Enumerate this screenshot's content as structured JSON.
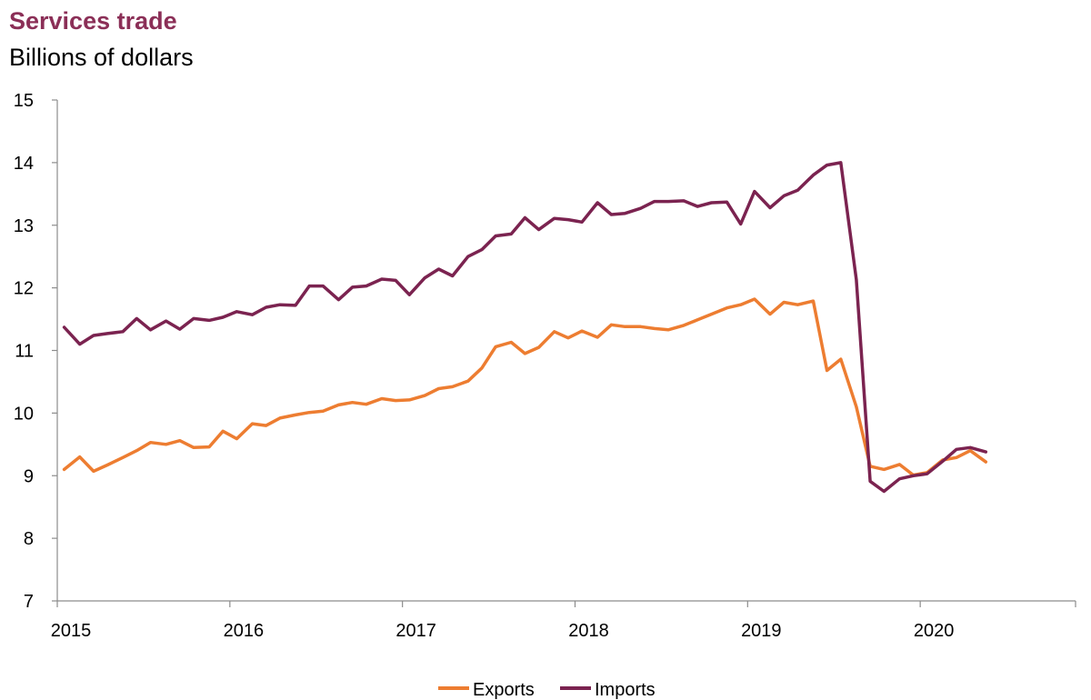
{
  "chart_data": {
    "type": "line",
    "title": "Services trade",
    "subtitle": "Billions of dollars",
    "xlabel": "",
    "ylabel": "",
    "ylim": [
      7,
      15
    ],
    "yticks": [
      7,
      8,
      9,
      10,
      11,
      12,
      13,
      14,
      15
    ],
    "xlim": [
      2015,
      2020.9
    ],
    "xticks": [
      2015,
      2016,
      2017,
      2018,
      2019,
      2020
    ],
    "xtick_labels": [
      "2015",
      "2016",
      "2017",
      "2018",
      "2019",
      "2020"
    ],
    "grid": false,
    "legend_position": "bottom-center",
    "x": [
      2015.04,
      2015.13,
      2015.21,
      2015.29,
      2015.38,
      2015.46,
      2015.54,
      2015.63,
      2015.71,
      2015.79,
      2015.88,
      2015.96,
      2016.04,
      2016.13,
      2016.21,
      2016.29,
      2016.38,
      2016.46,
      2016.54,
      2016.63,
      2016.71,
      2016.79,
      2016.88,
      2016.96,
      2017.04,
      2017.13,
      2017.21,
      2017.29,
      2017.38,
      2017.46,
      2017.54,
      2017.63,
      2017.71,
      2017.79,
      2017.88,
      2017.96,
      2018.04,
      2018.13,
      2018.21,
      2018.29,
      2018.38,
      2018.46,
      2018.54,
      2018.63,
      2018.71,
      2018.79,
      2018.88,
      2018.96,
      2019.04,
      2019.13,
      2019.21,
      2019.29,
      2019.38,
      2019.46,
      2019.54,
      2019.63,
      2019.71,
      2019.79,
      2019.88,
      2019.96,
      2020.04,
      2020.13,
      2020.21,
      2020.29,
      2020.38
    ],
    "series": [
      {
        "name": "Exports",
        "color": "#ED7D31",
        "values": [
          9.1,
          9.3,
          9.07,
          9.17,
          9.29,
          9.4,
          9.53,
          9.5,
          9.56,
          9.45,
          9.46,
          9.71,
          9.59,
          9.83,
          9.8,
          9.92,
          9.97,
          10.01,
          10.03,
          10.13,
          10.17,
          10.14,
          10.23,
          10.2,
          10.21,
          10.28,
          10.39,
          10.42,
          10.51,
          10.72,
          11.06,
          11.13,
          10.95,
          11.05,
          11.3,
          11.2,
          11.31,
          11.21,
          11.41,
          11.38,
          11.38,
          11.35,
          11.33,
          11.4,
          11.49,
          11.58,
          11.68,
          11.73,
          11.82,
          11.58,
          11.77,
          11.73,
          11.79,
          10.68,
          10.86,
          10.1,
          9.15,
          9.1,
          9.18,
          9.01,
          9.05,
          9.25,
          9.29,
          9.4,
          9.22
        ]
      },
      {
        "name": "Imports",
        "color": "#7B2350",
        "values": [
          11.37,
          11.1,
          11.24,
          11.27,
          11.3,
          11.51,
          11.33,
          11.47,
          11.34,
          11.51,
          11.48,
          11.53,
          11.62,
          11.57,
          11.69,
          11.73,
          11.72,
          12.03,
          12.03,
          11.81,
          12.01,
          12.03,
          12.14,
          12.12,
          11.89,
          12.16,
          12.3,
          12.19,
          12.5,
          12.61,
          12.83,
          12.86,
          13.12,
          12.93,
          13.11,
          13.09,
          13.05,
          13.36,
          13.17,
          13.19,
          13.27,
          13.38,
          13.38,
          13.39,
          13.3,
          13.36,
          13.37,
          13.02,
          13.54,
          13.28,
          13.47,
          13.56,
          13.8,
          13.96,
          14.0,
          12.13,
          8.91,
          8.75,
          8.95,
          9.0,
          9.03,
          9.23,
          9.42,
          9.45,
          9.38
        ]
      }
    ]
  }
}
